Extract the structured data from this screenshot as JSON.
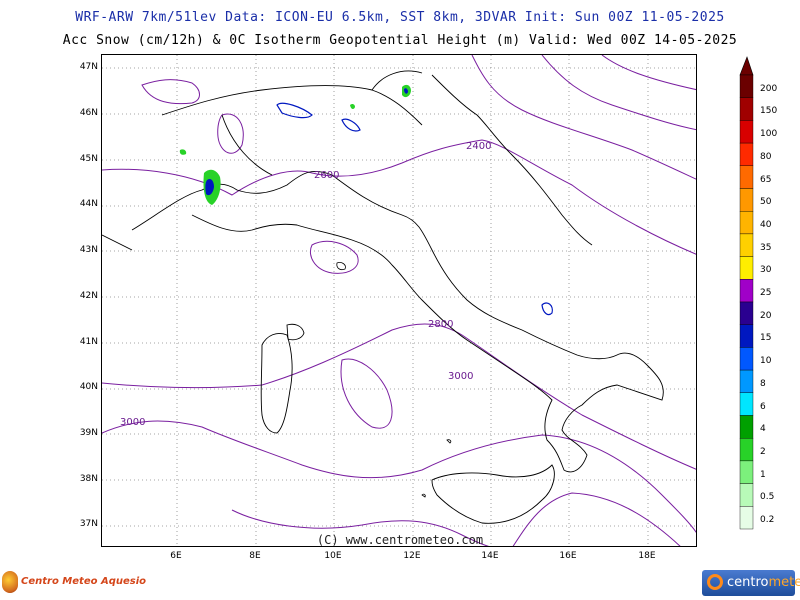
{
  "header": {
    "line1": "WRF-ARW 7km/51lev   Data: ICON-EU 6.5km, SST 8km, 3DVAR   Init: Sun 00Z 11-05-2025",
    "line2": "Acc Snow (cm/12h) & 0C Isotherm Geopotential Height (m)  Valid: Wed 00Z 14-05-2025"
  },
  "axes": {
    "lat_labels": [
      "47N",
      "46N",
      "45N",
      "44N",
      "43N",
      "42N",
      "41N",
      "40N",
      "39N",
      "38N",
      "37N"
    ],
    "lon_labels": [
      "6E",
      "8E",
      "10E",
      "12E",
      "14E",
      "16E",
      "18E"
    ]
  },
  "contour_labels": [
    "2400",
    "2600",
    "2800",
    "3000",
    "3000"
  ],
  "colorbar": {
    "labels": [
      "200",
      "150",
      "100",
      "80",
      "65",
      "50",
      "40",
      "35",
      "30",
      "25",
      "20",
      "15",
      "10",
      "8",
      "6",
      "4",
      "2",
      "1",
      "0.5",
      "0.2"
    ],
    "colors": [
      "#6b0000",
      "#a00000",
      "#d80000",
      "#ff2a00",
      "#ff6a00",
      "#ff9800",
      "#ffb400",
      "#ffd000",
      "#ffee00",
      "#a000c8",
      "#2a0090",
      "#0018c0",
      "#0058ff",
      "#0098ff",
      "#00e6ff",
      "#00a000",
      "#28d228",
      "#7cf07c",
      "#b8fab8",
      "#e6fde6"
    ]
  },
  "copyright": "(C) www.centrometeo.com",
  "logos": {
    "left_text": "Centro Meteo Aquesio",
    "right_text_main": "centro",
    "right_text_accent": "meteo"
  }
}
